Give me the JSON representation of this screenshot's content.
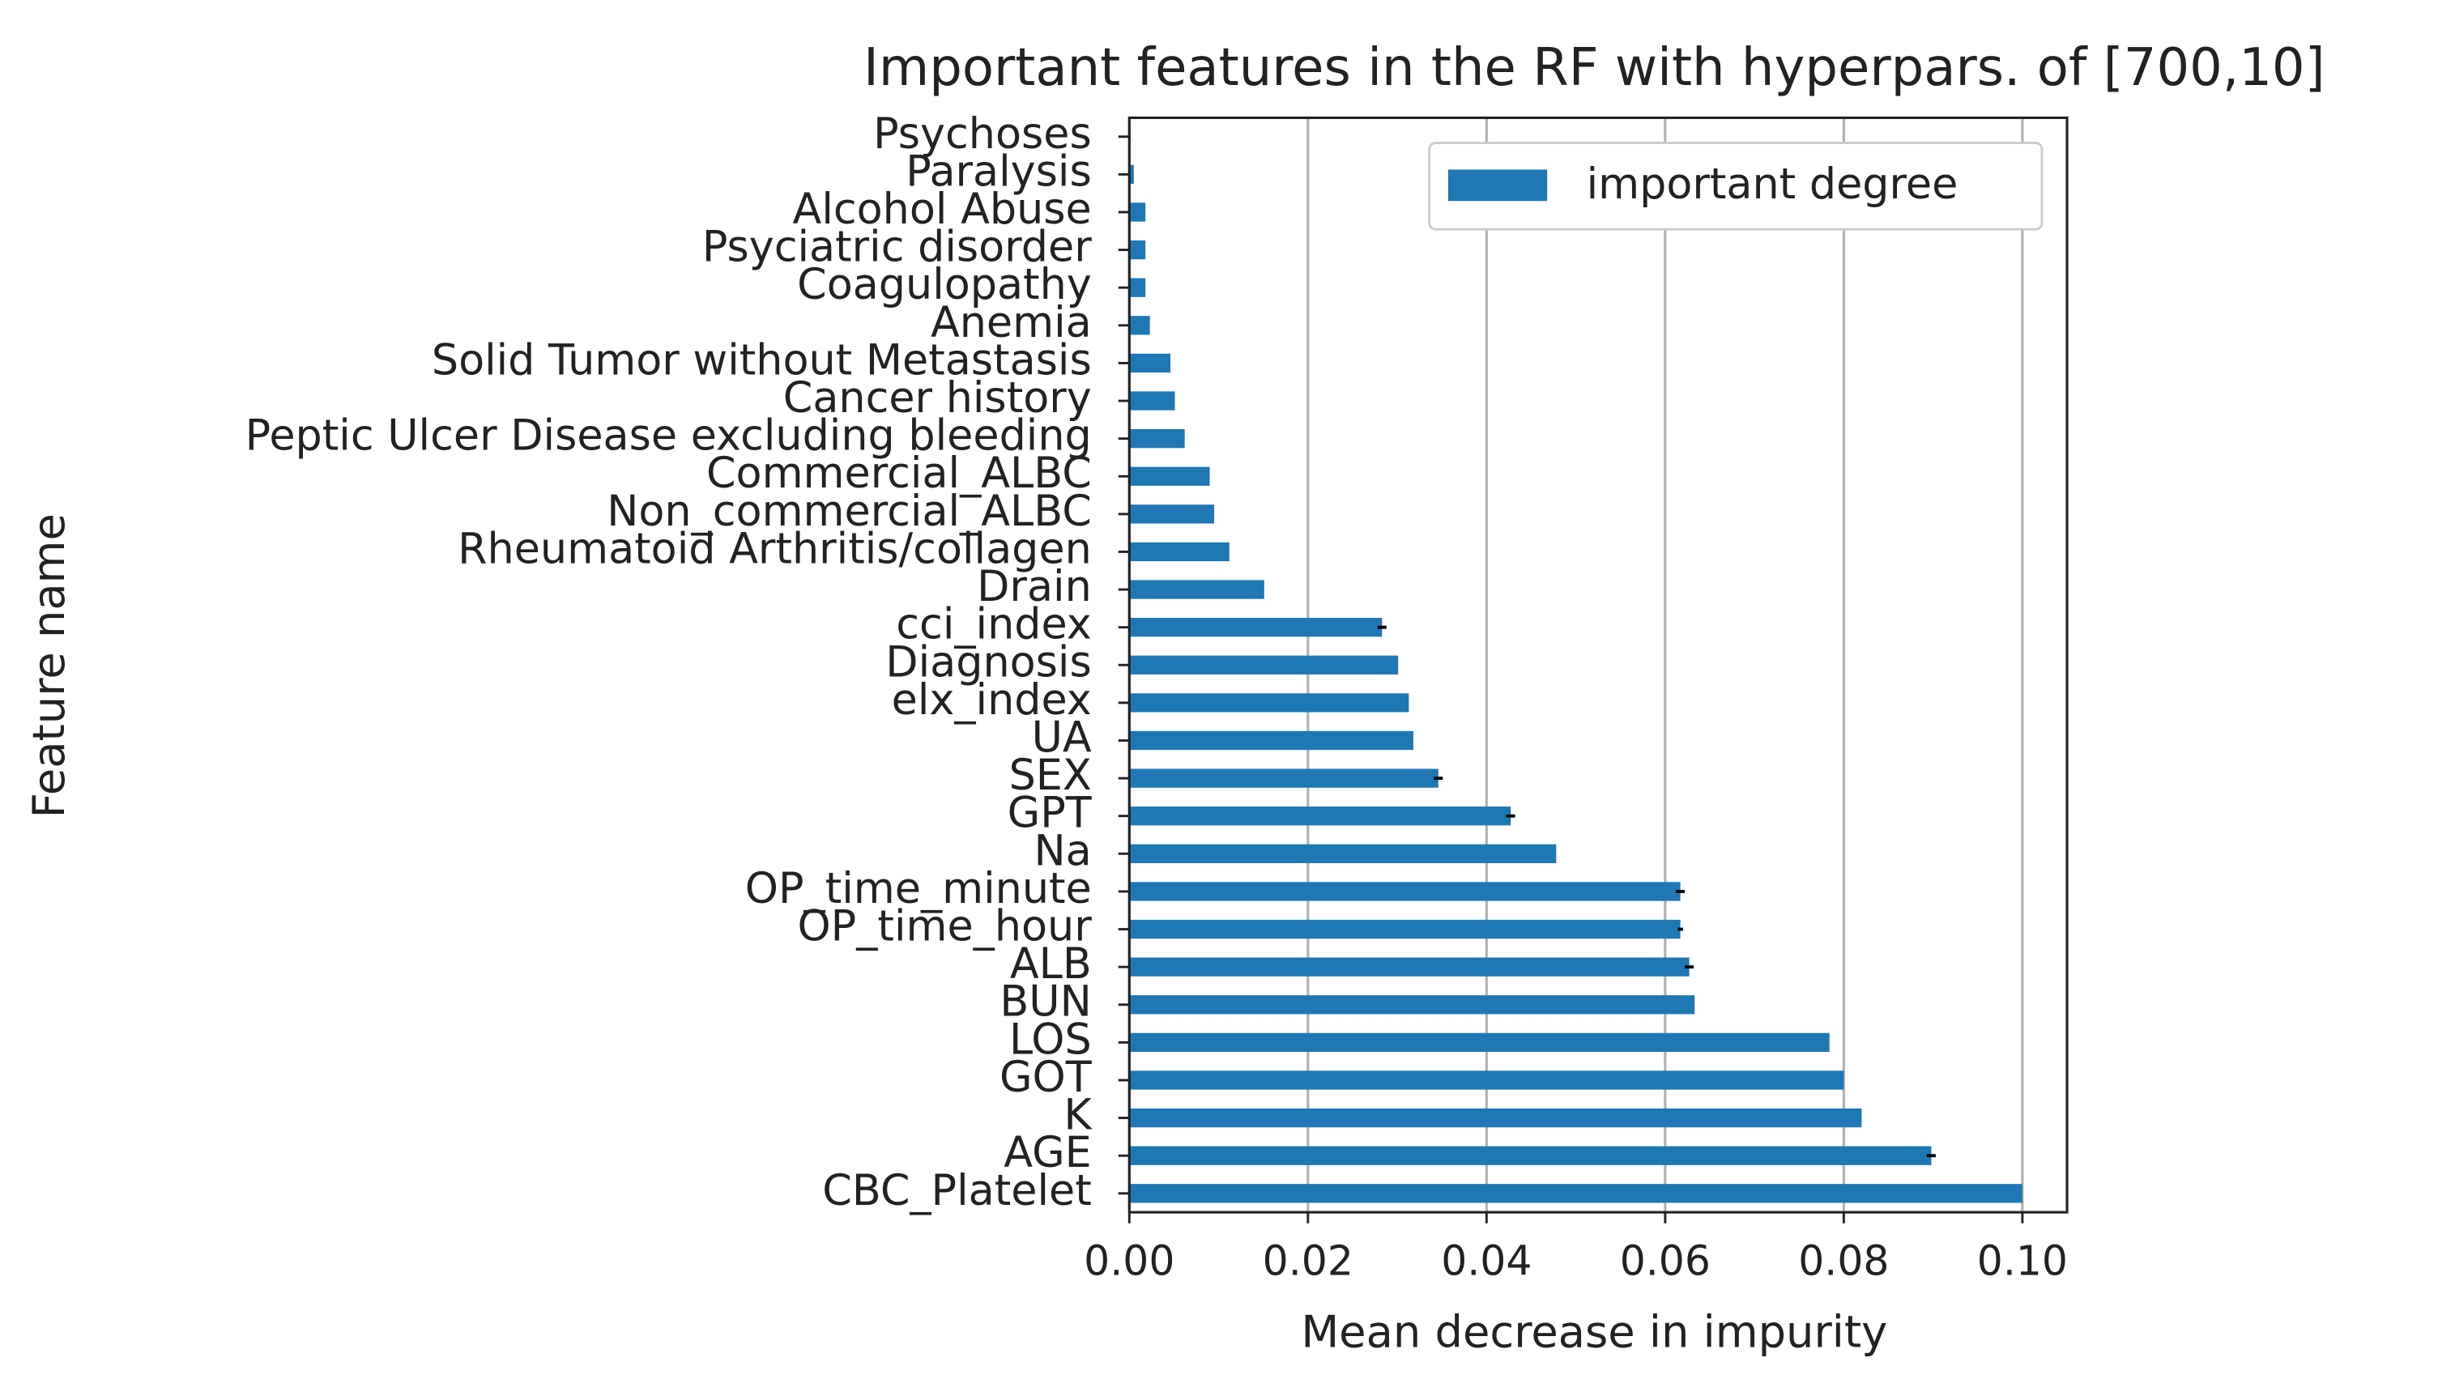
{
  "chart_data": {
    "type": "barh",
    "title": "Important features in the RF with hyperpars. of [700,10]",
    "xlabel": "Mean decrease in impurity",
    "ylabel": "Feature name",
    "categories": [
      "CBC_Platelet",
      "AGE",
      "K",
      "GOT",
      "LOS",
      "BUN",
      "ALB",
      "OP_time_hour",
      "OP_time_minute",
      "Na",
      "GPT",
      "SEX",
      "UA",
      "elx_index",
      "Diagnosis",
      "cci_index",
      "Drain",
      "Rheumatoid Arthritis/collagen",
      "Non_commercial_ALBC",
      "Commercial_ALBC",
      "Peptic Ulcer Disease excluding bleeding",
      "Cancer history",
      "Solid Tumor without Metastasis",
      "Anemia",
      "Coagulopathy",
      "Psyciatric disorder",
      "Alcohol Abuse",
      "Paralysis",
      "Psychoses"
    ],
    "series": [
      {
        "name": "important degree",
        "color": "#1f77b4",
        "values": [
          0.1,
          0.0898,
          0.082,
          0.08,
          0.0784,
          0.0633,
          0.0627,
          0.0617,
          0.0617,
          0.0478,
          0.0427,
          0.0346,
          0.0318,
          0.0313,
          0.0301,
          0.0283,
          0.0151,
          0.0112,
          0.0095,
          0.009,
          0.0062,
          0.0051,
          0.0046,
          0.0023,
          0.0018,
          0.0018,
          0.0018,
          0.0005,
          0.0001
        ],
        "errors": [
          0,
          0.0005,
          0,
          0,
          0,
          0,
          0.0005,
          0.0003,
          0.0005,
          0,
          0.0005,
          0.0005,
          0,
          0,
          0,
          0.0005,
          0,
          0,
          0,
          0,
          0,
          0,
          0,
          0,
          0,
          0,
          0,
          0,
          0
        ]
      }
    ],
    "xlim": [
      0,
      0.105
    ],
    "xticks": [
      {
        "value": 0,
        "label": "0.00"
      },
      {
        "value": 0.02,
        "label": "0.02"
      },
      {
        "value": 0.04,
        "label": "0.04"
      },
      {
        "value": 0.06,
        "label": "0.06"
      },
      {
        "value": 0.08,
        "label": "0.08"
      },
      {
        "value": 0.1,
        "label": "0.10"
      }
    ],
    "grid": true,
    "legend": "upper right"
  }
}
